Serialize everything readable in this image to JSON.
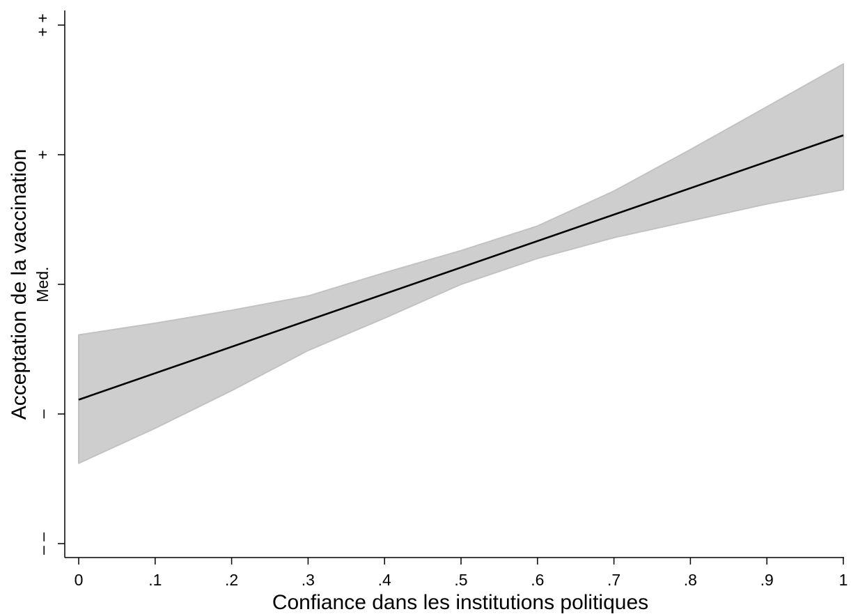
{
  "chart_data": {
    "type": "line",
    "title": "",
    "xlabel": "Confiance dans les institutions politiques",
    "ylabel": "Acceptation de la vaccination",
    "xlim": [
      0,
      1
    ],
    "ylim": [
      -2.1,
      2.1
    ],
    "grid": false,
    "legend": "none",
    "x_ticks": [
      {
        "value": 0,
        "label": "0"
      },
      {
        "value": 0.1,
        "label": ".1"
      },
      {
        "value": 0.2,
        "label": ".2"
      },
      {
        "value": 0.3,
        "label": ".3"
      },
      {
        "value": 0.4,
        "label": ".4"
      },
      {
        "value": 0.5,
        "label": ".5"
      },
      {
        "value": 0.6,
        "label": ".6"
      },
      {
        "value": 0.7,
        "label": ".7"
      },
      {
        "value": 0.8,
        "label": ".8"
      },
      {
        "value": 0.9,
        "label": ".9"
      },
      {
        "value": 1,
        "label": "1"
      }
    ],
    "y_ticks": [
      {
        "value": 2,
        "label": "+ +"
      },
      {
        "value": 1,
        "label": "+"
      },
      {
        "value": 0,
        "label": "Med."
      },
      {
        "value": -1,
        "label": "–"
      },
      {
        "value": -2,
        "label": "– –"
      }
    ],
    "series": [
      {
        "type": "line",
        "x": [
          0,
          1
        ],
        "y": [
          -0.89,
          1.15
        ],
        "color": "#000000"
      },
      {
        "type": "band",
        "x": [
          0,
          0.1,
          0.2,
          0.3,
          0.4,
          0.5,
          0.6,
          0.7,
          0.8,
          0.9,
          1
        ],
        "upper": [
          -0.39,
          -0.3,
          -0.2,
          -0.09,
          0.09,
          0.26,
          0.45,
          0.72,
          1.04,
          1.37,
          1.7
        ],
        "lower": [
          -1.38,
          -1.11,
          -0.82,
          -0.51,
          -0.26,
          0.0,
          0.2,
          0.36,
          0.49,
          0.62,
          0.73
        ],
        "color": "#cccccc"
      }
    ],
    "colors": {
      "line": "#000000",
      "band_fill": "#cecece",
      "band_edge": "#c2c2c2",
      "axis": "#000000"
    }
  }
}
